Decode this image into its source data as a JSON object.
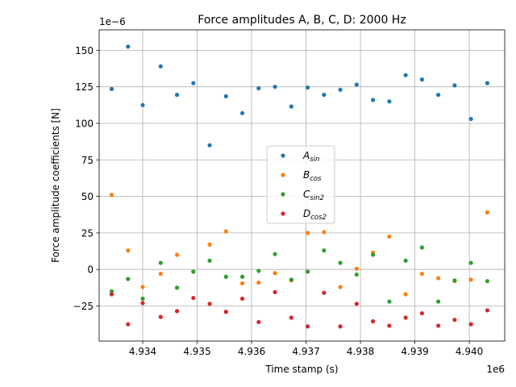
{
  "chart_data": {
    "type": "scatter",
    "title": "Force amplitudes A, B, C, D: 2000 Hz",
    "xlabel": "Time stamp (s)",
    "ylabel": "Force amplitude coefficients [N]",
    "x_offset_label": "1e6",
    "y_offset_label": "1e−6",
    "xlim": [
      4933200,
      4940650
    ],
    "ylim": [
      -4.9e-05,
      0.000164
    ],
    "x_ticks": [
      4934000,
      4935000,
      4936000,
      4937000,
      4938000,
      4939000,
      4940000
    ],
    "x_tick_labels": [
      "4.934",
      "4.935",
      "4.936",
      "4.937",
      "4.938",
      "4.939",
      "4.940"
    ],
    "y_ticks": [
      -2.5e-05,
      0,
      2.5e-05,
      5e-05,
      7.5e-05,
      0.0001,
      0.000125,
      0.00015
    ],
    "y_tick_labels": [
      "−25",
      "0",
      "25",
      "50",
      "75",
      "100",
      "125",
      "150"
    ],
    "grid": true,
    "legend_position": "center",
    "x": [
      4933430,
      4933730,
      4934000,
      4934330,
      4934630,
      4934930,
      4935230,
      4935530,
      4935830,
      4936130,
      4936430,
      4936730,
      4937030,
      4937330,
      4937630,
      4937930,
      4938230,
      4938530,
      4938830,
      4939130,
      4939430,
      4939730,
      4940030,
      4940330
    ],
    "series": [
      {
        "name": "A",
        "subscript": "sin",
        "color": "#1f77b4",
        "values": [
          0.0001235,
          0.0001525,
          0.0001125,
          0.000139,
          0.0001195,
          0.0001275,
          8.5e-05,
          0.0001185,
          0.000107,
          0.000124,
          0.000125,
          0.0001115,
          0.0001245,
          0.0001195,
          0.000123,
          0.0001265,
          0.000116,
          0.000115,
          0.000133,
          0.00013,
          0.0001195,
          0.000126,
          0.000103,
          0.0001275
        ]
      },
      {
        "name": "B",
        "subscript": "cos",
        "color": "#ff7f0e",
        "values": [
          5.1e-05,
          1.3e-05,
          -1.2e-05,
          -3e-06,
          1e-05,
          -1.5e-06,
          1.7e-05,
          2.6e-05,
          -9.5e-06,
          -9e-06,
          -2.5e-06,
          -7.5e-06,
          2.5e-05,
          2.55e-05,
          -1.2e-05,
          5e-07,
          1.15e-05,
          2.25e-05,
          -1.7e-05,
          -3e-06,
          -6e-06,
          -8e-06,
          -7e-06,
          3.9e-05
        ]
      },
      {
        "name": "C",
        "subscript": "sin2",
        "color": "#2ca02c",
        "values": [
          -1.5e-05,
          -6.5e-06,
          -2e-05,
          4.5e-06,
          -1.25e-05,
          -1.5e-06,
          6e-06,
          -5e-06,
          -5e-06,
          -1e-06,
          1.05e-05,
          -7e-06,
          -1.5e-06,
          1.3e-05,
          4.5e-06,
          -3.5e-06,
          1e-05,
          -2.2e-05,
          6e-06,
          1.5e-05,
          -2.2e-05,
          -7.5e-06,
          4.5e-06,
          -8e-06
        ]
      },
      {
        "name": "D",
        "subscript": "cos2",
        "color": "#d62728",
        "values": [
          -1.7e-05,
          -3.75e-05,
          -2.3e-05,
          -3.25e-05,
          -2.85e-05,
          -1.95e-05,
          -2.35e-05,
          -2.9e-05,
          -2e-05,
          -3.6e-05,
          -1.55e-05,
          -3.3e-05,
          -3.9e-05,
          -1.6e-05,
          -3.9e-05,
          -2.35e-05,
          -3.55e-05,
          -3.85e-05,
          -3.3e-05,
          -3e-05,
          -3.85e-05,
          -3.45e-05,
          -3.75e-05,
          -2.8e-05
        ]
      }
    ]
  }
}
